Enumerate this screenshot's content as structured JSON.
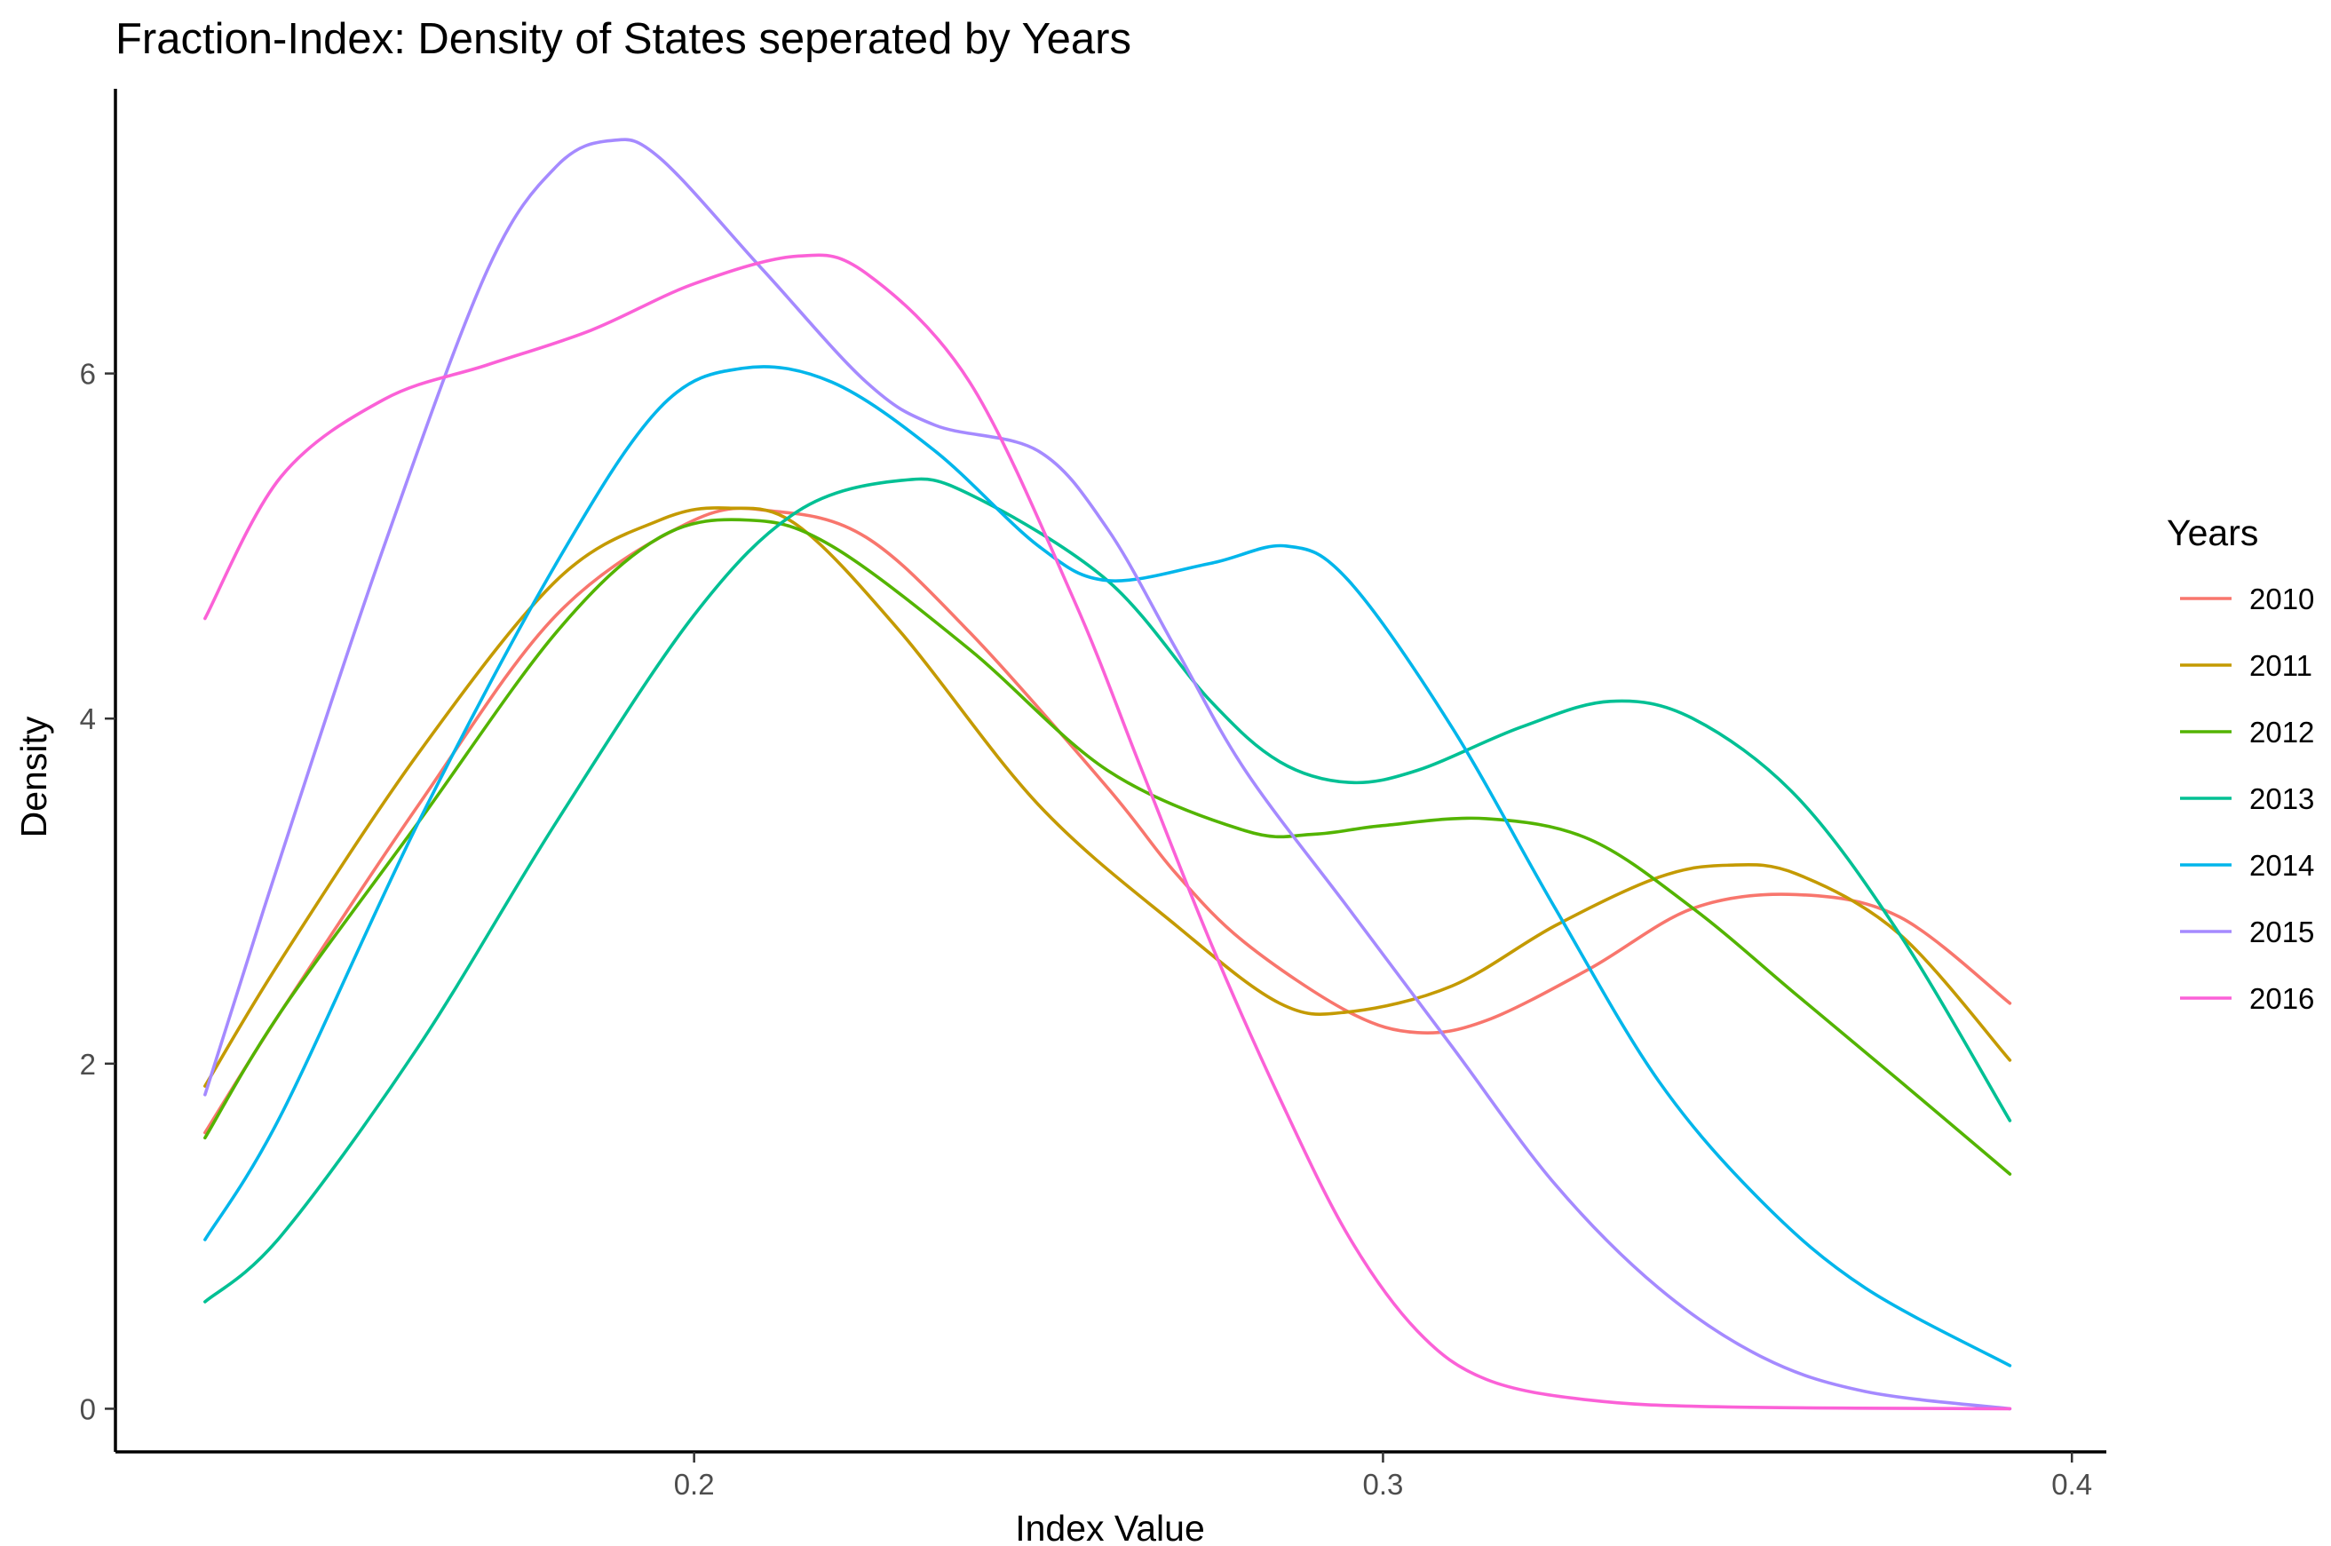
{
  "chart_data": {
    "type": "line",
    "title": "Fraction-Index: Density of States seperated by Years",
    "xlabel": "Index Value",
    "ylabel": "Density",
    "xlim": [
      0.116,
      0.405
    ],
    "ylim": [
      -0.25,
      7.65
    ],
    "x_ticks": [
      0.2,
      0.3,
      0.4
    ],
    "x_tick_labels": [
      "0.2",
      "0.3",
      "0.4"
    ],
    "y_ticks": [
      0,
      2,
      4,
      6
    ],
    "y_tick_labels": [
      "0",
      "2",
      "4",
      "6"
    ],
    "grid": false,
    "legend": {
      "title": "Years",
      "position": "right"
    },
    "series": [
      {
        "name": "2010",
        "color": "#F8766D",
        "points": [
          [
            0.129,
            1.6
          ],
          [
            0.14,
            2.3
          ],
          [
            0.16,
            3.5
          ],
          [
            0.18,
            4.6
          ],
          [
            0.2,
            5.15
          ],
          [
            0.212,
            5.2
          ],
          [
            0.225,
            5.05
          ],
          [
            0.24,
            4.5
          ],
          [
            0.26,
            3.6
          ],
          [
            0.27,
            3.1
          ],
          [
            0.28,
            2.7
          ],
          [
            0.295,
            2.3
          ],
          [
            0.305,
            2.18
          ],
          [
            0.315,
            2.25
          ],
          [
            0.33,
            2.55
          ],
          [
            0.345,
            2.9
          ],
          [
            0.36,
            2.98
          ],
          [
            0.375,
            2.85
          ],
          [
            0.391,
            2.35
          ]
        ]
      },
      {
        "name": "2011",
        "color": "#C49A00",
        "points": [
          [
            0.129,
            1.87
          ],
          [
            0.14,
            2.6
          ],
          [
            0.16,
            3.8
          ],
          [
            0.18,
            4.8
          ],
          [
            0.195,
            5.15
          ],
          [
            0.205,
            5.22
          ],
          [
            0.215,
            5.12
          ],
          [
            0.23,
            4.5
          ],
          [
            0.25,
            3.5
          ],
          [
            0.27,
            2.8
          ],
          [
            0.285,
            2.35
          ],
          [
            0.295,
            2.3
          ],
          [
            0.31,
            2.45
          ],
          [
            0.325,
            2.8
          ],
          [
            0.34,
            3.08
          ],
          [
            0.35,
            3.15
          ],
          [
            0.36,
            3.1
          ],
          [
            0.375,
            2.75
          ],
          [
            0.391,
            2.02
          ]
        ]
      },
      {
        "name": "2012",
        "color": "#53B400",
        "points": [
          [
            0.129,
            1.57
          ],
          [
            0.14,
            2.3
          ],
          [
            0.16,
            3.4
          ],
          [
            0.18,
            4.5
          ],
          [
            0.195,
            5.05
          ],
          [
            0.208,
            5.15
          ],
          [
            0.22,
            5.0
          ],
          [
            0.24,
            4.4
          ],
          [
            0.26,
            3.7
          ],
          [
            0.28,
            3.35
          ],
          [
            0.29,
            3.33
          ],
          [
            0.3,
            3.38
          ],
          [
            0.315,
            3.42
          ],
          [
            0.33,
            3.3
          ],
          [
            0.345,
            2.9
          ],
          [
            0.36,
            2.4
          ],
          [
            0.375,
            1.9
          ],
          [
            0.391,
            1.36
          ]
        ]
      },
      {
        "name": "2013",
        "color": "#00C094",
        "points": [
          [
            0.129,
            0.62
          ],
          [
            0.14,
            1.0
          ],
          [
            0.16,
            2.1
          ],
          [
            0.18,
            3.4
          ],
          [
            0.2,
            4.6
          ],
          [
            0.215,
            5.2
          ],
          [
            0.23,
            5.38
          ],
          [
            0.24,
            5.3
          ],
          [
            0.26,
            4.8
          ],
          [
            0.275,
            4.1
          ],
          [
            0.285,
            3.75
          ],
          [
            0.295,
            3.63
          ],
          [
            0.305,
            3.7
          ],
          [
            0.32,
            3.95
          ],
          [
            0.333,
            4.1
          ],
          [
            0.345,
            4.0
          ],
          [
            0.36,
            3.55
          ],
          [
            0.375,
            2.75
          ],
          [
            0.391,
            1.67
          ]
        ]
      },
      {
        "name": "2014",
        "color": "#00B6EB",
        "points": [
          [
            0.129,
            0.98
          ],
          [
            0.14,
            1.7
          ],
          [
            0.16,
            3.4
          ],
          [
            0.18,
            4.9
          ],
          [
            0.195,
            5.8
          ],
          [
            0.207,
            6.03
          ],
          [
            0.22,
            5.95
          ],
          [
            0.235,
            5.55
          ],
          [
            0.25,
            5.0
          ],
          [
            0.26,
            4.8
          ],
          [
            0.275,
            4.9
          ],
          [
            0.286,
            5.0
          ],
          [
            0.295,
            4.8
          ],
          [
            0.31,
            3.95
          ],
          [
            0.325,
            2.9
          ],
          [
            0.34,
            1.9
          ],
          [
            0.355,
            1.2
          ],
          [
            0.37,
            0.7
          ],
          [
            0.391,
            0.25
          ]
        ]
      },
      {
        "name": "2015",
        "color": "#A58AFF",
        "points": [
          [
            0.129,
            1.82
          ],
          [
            0.14,
            3.2
          ],
          [
            0.155,
            5.0
          ],
          [
            0.17,
            6.6
          ],
          [
            0.18,
            7.2
          ],
          [
            0.188,
            7.35
          ],
          [
            0.195,
            7.25
          ],
          [
            0.21,
            6.6
          ],
          [
            0.225,
            5.95
          ],
          [
            0.235,
            5.7
          ],
          [
            0.25,
            5.55
          ],
          [
            0.26,
            5.1
          ],
          [
            0.27,
            4.4
          ],
          [
            0.28,
            3.7
          ],
          [
            0.295,
            2.9
          ],
          [
            0.31,
            2.1
          ],
          [
            0.325,
            1.3
          ],
          [
            0.34,
            0.7
          ],
          [
            0.355,
            0.3
          ],
          [
            0.37,
            0.1
          ],
          [
            0.391,
            0.0
          ]
        ]
      },
      {
        "name": "2016",
        "color": "#FB61D7",
        "points": [
          [
            0.129,
            4.58
          ],
          [
            0.14,
            5.4
          ],
          [
            0.155,
            5.85
          ],
          [
            0.17,
            6.05
          ],
          [
            0.185,
            6.25
          ],
          [
            0.2,
            6.52
          ],
          [
            0.215,
            6.68
          ],
          [
            0.225,
            6.58
          ],
          [
            0.24,
            5.95
          ],
          [
            0.255,
            4.7
          ],
          [
            0.265,
            3.7
          ],
          [
            0.275,
            2.7
          ],
          [
            0.285,
            1.8
          ],
          [
            0.295,
            1.0
          ],
          [
            0.305,
            0.45
          ],
          [
            0.315,
            0.17
          ],
          [
            0.33,
            0.05
          ],
          [
            0.35,
            0.01
          ],
          [
            0.391,
            0.0
          ]
        ]
      }
    ]
  }
}
